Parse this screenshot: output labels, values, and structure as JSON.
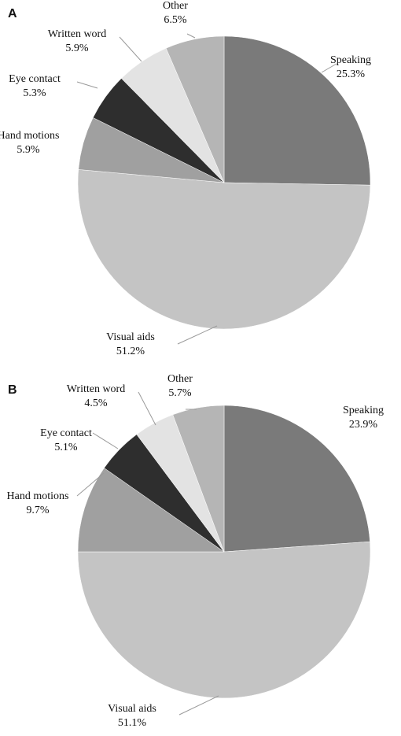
{
  "chart_data": [
    {
      "type": "pie",
      "panel": "A",
      "slices": [
        {
          "label": "Speaking",
          "value": 25.3,
          "value_label": "25.3%",
          "color": "#7a7a7a"
        },
        {
          "label": "Visual aids",
          "value": 51.2,
          "value_label": "51.2%",
          "color": "#c4c4c4"
        },
        {
          "label": "Hand motions",
          "value": 5.9,
          "value_label": "5.9%",
          "color": "#a0a0a0"
        },
        {
          "label": "Eye contact",
          "value": 5.3,
          "value_label": "5.3%",
          "color": "#2e2e2e"
        },
        {
          "label": "Written word",
          "value": 5.9,
          "value_label": "5.9%",
          "color": "#e3e3e3"
        },
        {
          "label": "Other",
          "value": 6.5,
          "value_label": "6.5%",
          "color": "#b5b5b5"
        }
      ]
    },
    {
      "type": "pie",
      "panel": "B",
      "slices": [
        {
          "label": "Speaking",
          "value": 23.9,
          "value_label": "23.9%",
          "color": "#7a7a7a"
        },
        {
          "label": "Visual aids",
          "value": 51.1,
          "value_label": "51.1%",
          "color": "#c4c4c4"
        },
        {
          "label": "Hand motions",
          "value": 9.7,
          "value_label": "9.7%",
          "color": "#a0a0a0"
        },
        {
          "label": "Eye contact",
          "value": 5.1,
          "value_label": "5.1%",
          "color": "#2e2e2e"
        },
        {
          "label": "Written word",
          "value": 4.5,
          "value_label": "4.5%",
          "color": "#e3e3e3"
        },
        {
          "label": "Other",
          "value": 5.7,
          "value_label": "5.7%",
          "color": "#b5b5b5"
        }
      ]
    }
  ]
}
